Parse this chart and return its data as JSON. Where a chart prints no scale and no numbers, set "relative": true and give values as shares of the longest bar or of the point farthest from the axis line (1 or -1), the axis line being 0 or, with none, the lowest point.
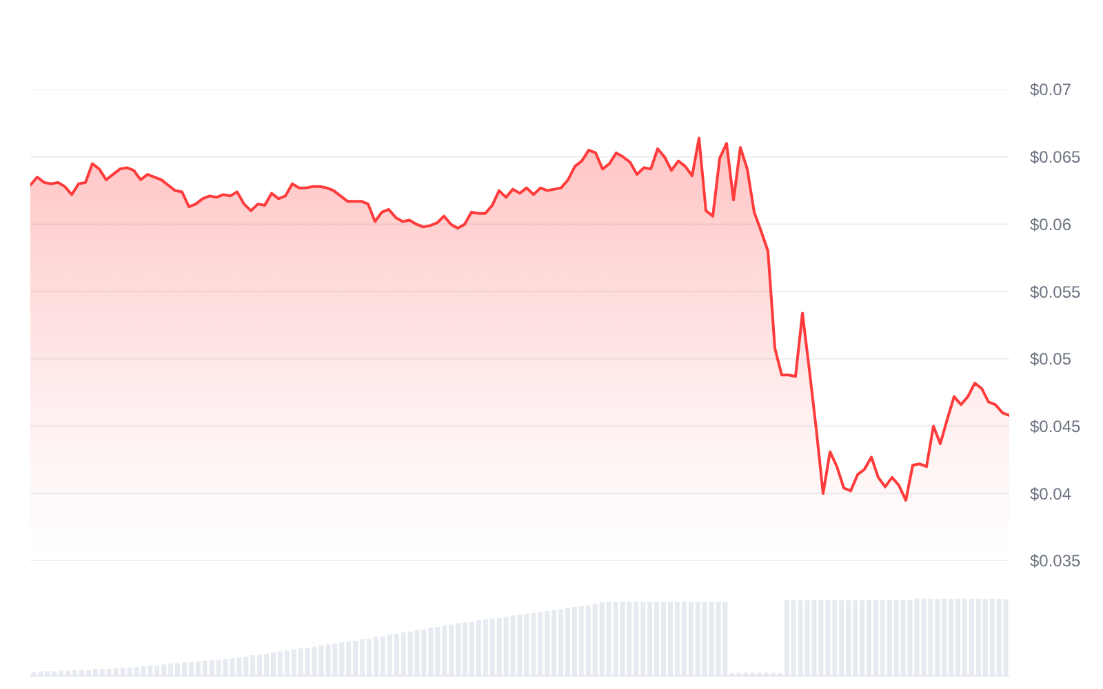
{
  "chart_data": [
    {
      "type": "area",
      "color": "#ff3b3b",
      "grid": "y",
      "tick_labels": "y",
      "ylim": [
        0.035,
        0.07
      ],
      "yticks": [
        {
          "value": 0.035,
          "label": "$0.035"
        },
        {
          "value": 0.04,
          "label": "$0.04"
        },
        {
          "value": 0.045,
          "label": "$0.045"
        },
        {
          "value": 0.05,
          "label": "$0.05"
        },
        {
          "value": 0.055,
          "label": "$0.055"
        },
        {
          "value": 0.06,
          "label": "$0.06"
        },
        {
          "value": 0.065,
          "label": "$0.065"
        },
        {
          "value": 0.07,
          "label": "$0.07"
        }
      ],
      "categories": [
        null,
        null,
        null,
        null,
        null,
        null,
        null,
        null,
        null,
        null,
        null,
        null,
        null,
        null,
        null,
        null,
        null,
        null,
        null,
        null,
        null,
        null,
        null,
        null,
        null,
        null,
        null,
        null,
        null,
        null,
        null,
        null,
        null,
        null,
        null,
        null,
        null,
        null,
        null,
        null,
        null,
        null,
        null,
        null,
        null,
        null,
        null,
        null,
        null,
        null,
        null,
        null,
        null,
        null,
        null,
        null,
        null,
        null,
        null,
        null,
        null,
        null,
        null,
        null,
        null,
        null,
        null,
        null,
        null,
        null,
        null,
        null,
        null,
        null,
        null,
        null,
        null,
        null,
        null,
        null,
        null,
        null,
        null,
        null,
        null,
        null,
        null,
        null,
        null,
        null,
        null,
        null,
        null,
        null,
        null,
        null,
        null,
        null,
        null,
        null,
        null,
        null,
        null,
        null,
        null,
        null,
        null,
        null,
        null,
        null,
        null,
        null,
        null,
        null,
        null,
        null,
        null,
        null,
        null,
        null,
        null,
        null,
        null,
        null,
        null,
        null,
        null,
        null,
        null,
        null,
        null,
        null,
        null,
        null,
        null,
        null,
        null,
        null,
        null,
        null,
        null,
        null,
        null
      ],
      "values": [
        0.0629,
        0.0635,
        0.0631,
        0.063,
        0.0631,
        0.0628,
        0.0622,
        0.063,
        0.0631,
        0.0645,
        0.0641,
        0.0633,
        0.0637,
        0.0641,
        0.0642,
        0.064,
        0.0633,
        0.0637,
        0.0635,
        0.0633,
        0.0629,
        0.0625,
        0.0624,
        0.0613,
        0.0615,
        0.0619,
        0.0621,
        0.062,
        0.0622,
        0.0621,
        0.0624,
        0.0615,
        0.061,
        0.0615,
        0.0614,
        0.0623,
        0.0619,
        0.0621,
        0.063,
        0.0627,
        0.0627,
        0.0628,
        0.0628,
        0.0627,
        0.0625,
        0.0621,
        0.0617,
        0.0617,
        0.0617,
        0.0615,
        0.0602,
        0.0609,
        0.0611,
        0.0605,
        0.0602,
        0.0603,
        0.06,
        0.0598,
        0.0599,
        0.0601,
        0.0606,
        0.06,
        0.0597,
        0.06,
        0.0609,
        0.0608,
        0.0608,
        0.0614,
        0.0625,
        0.062,
        0.0626,
        0.0623,
        0.0627,
        0.0622,
        0.0627,
        0.0625,
        0.0626,
        0.0627,
        0.0633,
        0.0643,
        0.0647,
        0.0655,
        0.0653,
        0.0641,
        0.0645,
        0.0653,
        0.065,
        0.0646,
        0.0637,
        0.0642,
        0.0641,
        0.0656,
        0.065,
        0.064,
        0.0647,
        0.0643,
        0.0636,
        0.0664,
        0.061,
        0.0606,
        0.0649,
        0.066,
        0.0618,
        0.0657,
        0.0641,
        0.0609,
        0.0595,
        0.058,
        0.0508,
        0.0488,
        0.0488,
        0.0487,
        0.0534,
        0.0492,
        0.0448,
        0.04,
        0.0431,
        0.042,
        0.0404,
        0.0402,
        0.0414,
        0.0418,
        0.0427,
        0.0412,
        0.0405,
        0.0412,
        0.0406,
        0.0395,
        0.0421,
        0.0422,
        0.042,
        0.045,
        0.0437,
        0.0455,
        0.0472,
        0.0466,
        0.0472,
        0.0482,
        0.0478,
        0.0468,
        0.0466,
        0.046,
        0.0458
      ]
    },
    {
      "type": "bar",
      "color": "#e6ebf1",
      "relative": true,
      "tick_labels": false,
      "categories": [
        null,
        null,
        null,
        null,
        null,
        null,
        null,
        null,
        null,
        null,
        null,
        null,
        null,
        null,
        null,
        null,
        null,
        null,
        null,
        null,
        null,
        null,
        null,
        null,
        null,
        null,
        null,
        null,
        null,
        null,
        null,
        null,
        null,
        null,
        null,
        null,
        null,
        null,
        null,
        null,
        null,
        null,
        null,
        null,
        null,
        null,
        null,
        null,
        null,
        null,
        null,
        null,
        null,
        null,
        null,
        null,
        null,
        null,
        null,
        null,
        null,
        null,
        null,
        null,
        null,
        null,
        null,
        null,
        null,
        null,
        null,
        null,
        null,
        null,
        null,
        null,
        null,
        null,
        null,
        null,
        null,
        null,
        null,
        null,
        null,
        null,
        null,
        null,
        null,
        null,
        null,
        null,
        null,
        null,
        null,
        null,
        null,
        null,
        null,
        null,
        null,
        null,
        null,
        null,
        null,
        null,
        null,
        null,
        null,
        null,
        null,
        null,
        null,
        null,
        null,
        null,
        null,
        null,
        null,
        null,
        null,
        null,
        null,
        null,
        null,
        null,
        null,
        null,
        null,
        null,
        null,
        null,
        null,
        null,
        null,
        null,
        null,
        null,
        null,
        null,
        null,
        null,
        null
      ],
      "values": [
        0.04,
        0.05,
        0.05,
        0.05,
        0.06,
        0.06,
        0.07,
        0.07,
        0.07,
        0.08,
        0.08,
        0.08,
        0.09,
        0.1,
        0.1,
        0.11,
        0.12,
        0.13,
        0.13,
        0.14,
        0.15,
        0.16,
        0.17,
        0.17,
        0.18,
        0.19,
        0.2,
        0.2,
        0.21,
        0.22,
        0.23,
        0.24,
        0.26,
        0.27,
        0.28,
        0.3,
        0.31,
        0.32,
        0.34,
        0.35,
        0.36,
        0.37,
        0.39,
        0.4,
        0.41,
        0.43,
        0.44,
        0.45,
        0.47,
        0.48,
        0.5,
        0.51,
        0.53,
        0.54,
        0.56,
        0.57,
        0.59,
        0.6,
        0.62,
        0.63,
        0.65,
        0.66,
        0.68,
        0.69,
        0.7,
        0.72,
        0.73,
        0.74,
        0.75,
        0.76,
        0.78,
        0.79,
        0.8,
        0.81,
        0.83,
        0.84,
        0.85,
        0.86,
        0.88,
        0.89,
        0.9,
        0.91,
        0.93,
        0.95,
        0.96,
        0.96,
        0.96,
        0.96,
        0.96,
        0.96,
        0.96,
        0.96,
        0.96,
        0.96,
        0.96,
        0.96,
        0.96,
        0.96,
        0.96,
        0.96,
        0.96,
        0.96,
        0.03,
        0.03,
        0.03,
        0.03,
        0.03,
        0.03,
        0.03,
        0.03,
        0.98,
        0.98,
        0.98,
        0.98,
        0.98,
        0.98,
        0.98,
        0.98,
        0.98,
        0.98,
        0.98,
        0.98,
        0.98,
        0.98,
        0.98,
        0.98,
        0.98,
        0.98,
        0.98,
        1.0,
        1.0,
        1.0,
        1.0,
        1.0,
        1.0,
        1.0,
        1.0,
        1.0,
        1.0,
        1.0,
        1.0,
        1.0,
        0.99
      ]
    }
  ]
}
